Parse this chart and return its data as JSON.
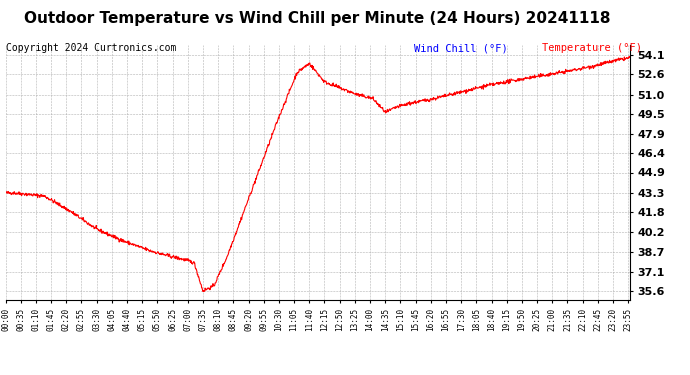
{
  "title": "Outdoor Temperature vs Wind Chill per Minute (24 Hours) 20241118",
  "copyright": "Copyright 2024 Curtronics.com",
  "legend_windchill": "Wind Chill (°F)",
  "legend_temp": "Temperature (°F)",
  "legend_windchill_color": "blue",
  "legend_temp_color": "red",
  "line_color": "red",
  "background_color": "white",
  "grid_color": "#aaaaaa",
  "yticks": [
    35.6,
    37.1,
    38.7,
    40.2,
    41.8,
    43.3,
    44.9,
    46.4,
    47.9,
    49.5,
    51.0,
    52.6,
    54.1
  ],
  "ylim": [
    34.9,
    54.9
  ],
  "xtick_labels": [
    "00:00",
    "00:35",
    "01:10",
    "01:45",
    "02:20",
    "02:55",
    "03:30",
    "04:05",
    "04:40",
    "05:15",
    "05:50",
    "06:25",
    "07:00",
    "07:35",
    "08:10",
    "08:45",
    "09:20",
    "09:55",
    "10:30",
    "11:05",
    "11:40",
    "12:15",
    "12:50",
    "13:25",
    "14:00",
    "14:35",
    "15:10",
    "15:45",
    "16:20",
    "16:55",
    "17:30",
    "18:05",
    "18:40",
    "19:15",
    "19:50",
    "20:25",
    "21:00",
    "21:35",
    "22:10",
    "22:45",
    "23:20",
    "23:55"
  ],
  "title_fontsize": 11,
  "copyright_fontsize": 7,
  "legend_fontsize": 7.5,
  "ytick_fontsize": 8,
  "xtick_fontsize": 5.5
}
